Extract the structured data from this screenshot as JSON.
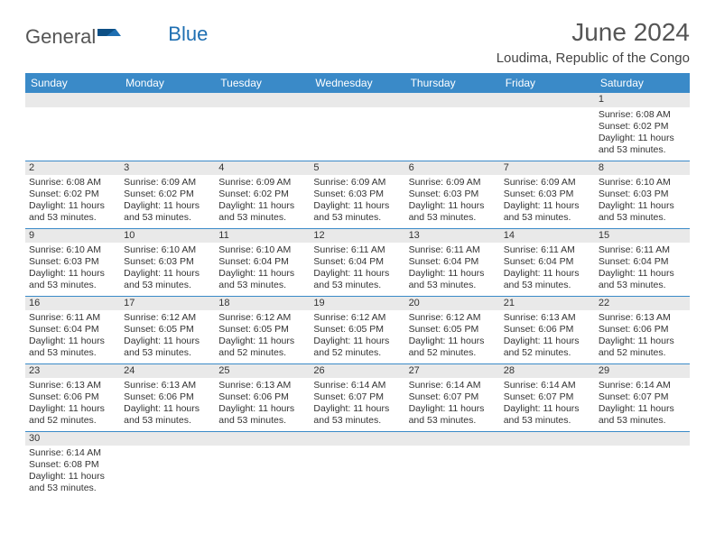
{
  "logo": {
    "part1": "General",
    "part2": "Blue"
  },
  "title": "June 2024",
  "location": "Loudima, Republic of the Congo",
  "colors": {
    "header_bg": "#3a8ac8",
    "header_text": "#ffffff",
    "daynum_bg": "#e9e9e9",
    "border": "#3a8ac8",
    "logo_gray": "#555555",
    "logo_blue": "#1f6fb2"
  },
  "weekdays": [
    "Sunday",
    "Monday",
    "Tuesday",
    "Wednesday",
    "Thursday",
    "Friday",
    "Saturday"
  ],
  "weeks": [
    [
      null,
      null,
      null,
      null,
      null,
      null,
      {
        "n": "1",
        "sr": "Sunrise: 6:08 AM",
        "ss": "Sunset: 6:02 PM",
        "d1": "Daylight: 11 hours",
        "d2": "and 53 minutes."
      }
    ],
    [
      {
        "n": "2",
        "sr": "Sunrise: 6:08 AM",
        "ss": "Sunset: 6:02 PM",
        "d1": "Daylight: 11 hours",
        "d2": "and 53 minutes."
      },
      {
        "n": "3",
        "sr": "Sunrise: 6:09 AM",
        "ss": "Sunset: 6:02 PM",
        "d1": "Daylight: 11 hours",
        "d2": "and 53 minutes."
      },
      {
        "n": "4",
        "sr": "Sunrise: 6:09 AM",
        "ss": "Sunset: 6:02 PM",
        "d1": "Daylight: 11 hours",
        "d2": "and 53 minutes."
      },
      {
        "n": "5",
        "sr": "Sunrise: 6:09 AM",
        "ss": "Sunset: 6:03 PM",
        "d1": "Daylight: 11 hours",
        "d2": "and 53 minutes."
      },
      {
        "n": "6",
        "sr": "Sunrise: 6:09 AM",
        "ss": "Sunset: 6:03 PM",
        "d1": "Daylight: 11 hours",
        "d2": "and 53 minutes."
      },
      {
        "n": "7",
        "sr": "Sunrise: 6:09 AM",
        "ss": "Sunset: 6:03 PM",
        "d1": "Daylight: 11 hours",
        "d2": "and 53 minutes."
      },
      {
        "n": "8",
        "sr": "Sunrise: 6:10 AM",
        "ss": "Sunset: 6:03 PM",
        "d1": "Daylight: 11 hours",
        "d2": "and 53 minutes."
      }
    ],
    [
      {
        "n": "9",
        "sr": "Sunrise: 6:10 AM",
        "ss": "Sunset: 6:03 PM",
        "d1": "Daylight: 11 hours",
        "d2": "and 53 minutes."
      },
      {
        "n": "10",
        "sr": "Sunrise: 6:10 AM",
        "ss": "Sunset: 6:03 PM",
        "d1": "Daylight: 11 hours",
        "d2": "and 53 minutes."
      },
      {
        "n": "11",
        "sr": "Sunrise: 6:10 AM",
        "ss": "Sunset: 6:04 PM",
        "d1": "Daylight: 11 hours",
        "d2": "and 53 minutes."
      },
      {
        "n": "12",
        "sr": "Sunrise: 6:11 AM",
        "ss": "Sunset: 6:04 PM",
        "d1": "Daylight: 11 hours",
        "d2": "and 53 minutes."
      },
      {
        "n": "13",
        "sr": "Sunrise: 6:11 AM",
        "ss": "Sunset: 6:04 PM",
        "d1": "Daylight: 11 hours",
        "d2": "and 53 minutes."
      },
      {
        "n": "14",
        "sr": "Sunrise: 6:11 AM",
        "ss": "Sunset: 6:04 PM",
        "d1": "Daylight: 11 hours",
        "d2": "and 53 minutes."
      },
      {
        "n": "15",
        "sr": "Sunrise: 6:11 AM",
        "ss": "Sunset: 6:04 PM",
        "d1": "Daylight: 11 hours",
        "d2": "and 53 minutes."
      }
    ],
    [
      {
        "n": "16",
        "sr": "Sunrise: 6:11 AM",
        "ss": "Sunset: 6:04 PM",
        "d1": "Daylight: 11 hours",
        "d2": "and 53 minutes."
      },
      {
        "n": "17",
        "sr": "Sunrise: 6:12 AM",
        "ss": "Sunset: 6:05 PM",
        "d1": "Daylight: 11 hours",
        "d2": "and 53 minutes."
      },
      {
        "n": "18",
        "sr": "Sunrise: 6:12 AM",
        "ss": "Sunset: 6:05 PM",
        "d1": "Daylight: 11 hours",
        "d2": "and 52 minutes."
      },
      {
        "n": "19",
        "sr": "Sunrise: 6:12 AM",
        "ss": "Sunset: 6:05 PM",
        "d1": "Daylight: 11 hours",
        "d2": "and 52 minutes."
      },
      {
        "n": "20",
        "sr": "Sunrise: 6:12 AM",
        "ss": "Sunset: 6:05 PM",
        "d1": "Daylight: 11 hours",
        "d2": "and 52 minutes."
      },
      {
        "n": "21",
        "sr": "Sunrise: 6:13 AM",
        "ss": "Sunset: 6:06 PM",
        "d1": "Daylight: 11 hours",
        "d2": "and 52 minutes."
      },
      {
        "n": "22",
        "sr": "Sunrise: 6:13 AM",
        "ss": "Sunset: 6:06 PM",
        "d1": "Daylight: 11 hours",
        "d2": "and 52 minutes."
      }
    ],
    [
      {
        "n": "23",
        "sr": "Sunrise: 6:13 AM",
        "ss": "Sunset: 6:06 PM",
        "d1": "Daylight: 11 hours",
        "d2": "and 52 minutes."
      },
      {
        "n": "24",
        "sr": "Sunrise: 6:13 AM",
        "ss": "Sunset: 6:06 PM",
        "d1": "Daylight: 11 hours",
        "d2": "and 53 minutes."
      },
      {
        "n": "25",
        "sr": "Sunrise: 6:13 AM",
        "ss": "Sunset: 6:06 PM",
        "d1": "Daylight: 11 hours",
        "d2": "and 53 minutes."
      },
      {
        "n": "26",
        "sr": "Sunrise: 6:14 AM",
        "ss": "Sunset: 6:07 PM",
        "d1": "Daylight: 11 hours",
        "d2": "and 53 minutes."
      },
      {
        "n": "27",
        "sr": "Sunrise: 6:14 AM",
        "ss": "Sunset: 6:07 PM",
        "d1": "Daylight: 11 hours",
        "d2": "and 53 minutes."
      },
      {
        "n": "28",
        "sr": "Sunrise: 6:14 AM",
        "ss": "Sunset: 6:07 PM",
        "d1": "Daylight: 11 hours",
        "d2": "and 53 minutes."
      },
      {
        "n": "29",
        "sr": "Sunrise: 6:14 AM",
        "ss": "Sunset: 6:07 PM",
        "d1": "Daylight: 11 hours",
        "d2": "and 53 minutes."
      }
    ],
    [
      {
        "n": "30",
        "sr": "Sunrise: 6:14 AM",
        "ss": "Sunset: 6:08 PM",
        "d1": "Daylight: 11 hours",
        "d2": "and 53 minutes."
      },
      null,
      null,
      null,
      null,
      null,
      null
    ]
  ]
}
